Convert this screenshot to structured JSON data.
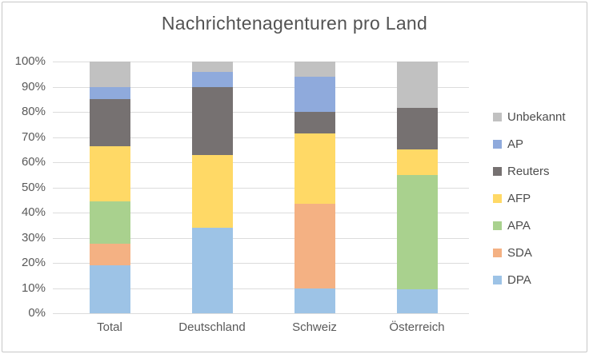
{
  "window": {
    "background": "#ffffff",
    "border_color": "#c7c7c7"
  },
  "chart_data": {
    "type": "bar",
    "stacked": true,
    "units": "percent",
    "title": "Nachrichtenagenturen pro Land",
    "categories": [
      "Total",
      "Deutschland",
      "Schweiz",
      "Österreich"
    ],
    "series": [
      {
        "name": "DPA",
        "color": "#9DC3E6",
        "values": [
          19,
          34,
          10,
          9.5
        ]
      },
      {
        "name": "SDA",
        "color": "#F4B183",
        "values": [
          8.5,
          0,
          33.5,
          0
        ]
      },
      {
        "name": "APA",
        "color": "#A9D18E",
        "values": [
          17,
          0,
          0,
          45.5
        ]
      },
      {
        "name": "AFP",
        "color": "#FFD966",
        "values": [
          22,
          29,
          28,
          10
        ]
      },
      {
        "name": "Reuters",
        "color": "#767171",
        "values": [
          18.5,
          27,
          8.5,
          16.5
        ]
      },
      {
        "name": "AP",
        "color": "#8FAADC",
        "values": [
          5,
          6,
          14,
          0
        ]
      },
      {
        "name": "Unbekannt",
        "color": "#C1C1C1",
        "values": [
          10,
          4,
          6,
          18.5
        ]
      }
    ],
    "stack_order_bottom_to_top": [
      "DPA",
      "SDA",
      "APA",
      "AFP",
      "Reuters",
      "AP",
      "Unbekannt"
    ],
    "y_ticks": [
      "100%",
      "90%",
      "80%",
      "70%",
      "60%",
      "50%",
      "40%",
      "30%",
      "20%",
      "10%",
      "0%"
    ],
    "ylim": [
      0,
      100
    ],
    "grid": true,
    "gridline_color": "#dcdcdc",
    "legend_position": "right",
    "legend_order": [
      "Unbekannt",
      "AP",
      "Reuters",
      "AFP",
      "APA",
      "SDA",
      "DPA"
    ],
    "text_color": "#595959",
    "title_color": "#535353"
  }
}
